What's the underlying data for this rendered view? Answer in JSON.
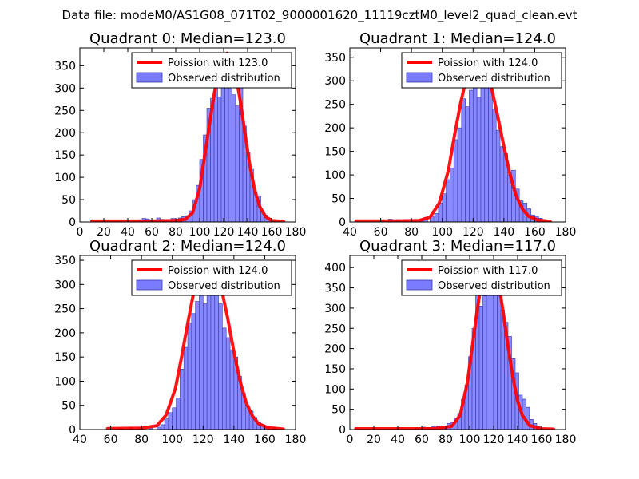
{
  "figure_title": "Data file: modeM0/AS1G08_071T02_9000001620_11119cztM0_level2_quad_clean.evt",
  "colors": {
    "bar_fill": "#7b7bff",
    "bar_edge": "#3a3aa8",
    "poisson_line": "#ff0000",
    "axes": "#000000"
  },
  "chart_data": [
    {
      "type": "bar",
      "title": "Quadrant 0: Median=123.0",
      "xlim": [
        0,
        180
      ],
      "ylim": [
        0,
        390
      ],
      "xticks": [
        0,
        20,
        40,
        60,
        80,
        100,
        120,
        140,
        160,
        180
      ],
      "yticks": [
        0,
        50,
        100,
        150,
        200,
        250,
        300,
        350
      ],
      "legend": {
        "location": "top-right",
        "line_label": "Poission with 123.0",
        "bar_label": "Observed distribution"
      },
      "poisson_mean": 123.0,
      "bin_width": 3.0,
      "bins": [
        [
          49,
          5
        ],
        [
          52,
          8
        ],
        [
          55,
          7
        ],
        [
          58,
          4
        ],
        [
          61,
          3
        ],
        [
          64,
          9
        ],
        [
          67,
          6
        ],
        [
          70,
          4
        ],
        [
          73,
          5
        ],
        [
          76,
          8
        ],
        [
          79,
          6
        ],
        [
          82,
          9
        ],
        [
          85,
          12
        ],
        [
          88,
          14
        ],
        [
          91,
          25
        ],
        [
          94,
          50
        ],
        [
          97,
          82
        ],
        [
          100,
          140
        ],
        [
          103,
          195
        ],
        [
          106,
          255
        ],
        [
          109,
          277
        ],
        [
          112,
          342
        ],
        [
          115,
          280
        ],
        [
          118,
          362
        ],
        [
          121,
          365
        ],
        [
          124,
          320
        ],
        [
          127,
          285
        ],
        [
          130,
          260
        ],
        [
          133,
          315
        ],
        [
          136,
          215
        ],
        [
          139,
          155
        ],
        [
          142,
          118
        ],
        [
          145,
          68
        ],
        [
          148,
          58
        ],
        [
          151,
          25
        ],
        [
          154,
          15
        ],
        [
          157,
          8
        ],
        [
          160,
          5
        ]
      ],
      "poisson_curve": [
        [
          10,
          2
        ],
        [
          40,
          2
        ],
        [
          60,
          2
        ],
        [
          80,
          3
        ],
        [
          88,
          6
        ],
        [
          94,
          20
        ],
        [
          100,
          75
        ],
        [
          104,
          145
        ],
        [
          108,
          215
        ],
        [
          112,
          285
        ],
        [
          116,
          340
        ],
        [
          120,
          372
        ],
        [
          123,
          378
        ],
        [
          126,
          368
        ],
        [
          130,
          330
        ],
        [
          134,
          270
        ],
        [
          138,
          195
        ],
        [
          142,
          125
        ],
        [
          146,
          70
        ],
        [
          150,
          35
        ],
        [
          155,
          12
        ],
        [
          160,
          3
        ],
        [
          170,
          1
        ]
      ]
    },
    {
      "type": "bar",
      "title": "Quadrant 1: Median=124.0",
      "xlim": [
        40,
        180
      ],
      "ylim": [
        0,
        370
      ],
      "xticks": [
        40,
        60,
        80,
        100,
        120,
        140,
        160,
        180
      ],
      "yticks": [
        0,
        50,
        100,
        150,
        200,
        250,
        300,
        350
      ],
      "legend": {
        "location": "top-right",
        "line_label": "Poission with 124.0",
        "bar_label": "Observed distribution"
      },
      "poisson_mean": 124.0,
      "bin_width": 2.5,
      "bins": [
        [
          60,
          4
        ],
        [
          65,
          6
        ],
        [
          70,
          5
        ],
        [
          75,
          3
        ],
        [
          80,
          4
        ],
        [
          85,
          5
        ],
        [
          88,
          9
        ],
        [
          92,
          12
        ],
        [
          95,
          18
        ],
        [
          97.5,
          40
        ],
        [
          100,
          60
        ],
        [
          102.5,
          90
        ],
        [
          105,
          115
        ],
        [
          107.5,
          175
        ],
        [
          110,
          200
        ],
        [
          112.5,
          262
        ],
        [
          115,
          245
        ],
        [
          117.5,
          280
        ],
        [
          120,
          300
        ],
        [
          122.5,
          265
        ],
        [
          125,
          320
        ],
        [
          127.5,
          340
        ],
        [
          130,
          300
        ],
        [
          132.5,
          240
        ],
        [
          135,
          195
        ],
        [
          137.5,
          160
        ],
        [
          140,
          145
        ],
        [
          142.5,
          100
        ],
        [
          145,
          110
        ],
        [
          147.5,
          70
        ],
        [
          150,
          45
        ],
        [
          152.5,
          40
        ],
        [
          155,
          28
        ],
        [
          157.5,
          15
        ],
        [
          160,
          12
        ],
        [
          162.5,
          8
        ],
        [
          165,
          5
        ]
      ],
      "poisson_curve": [
        [
          44,
          2
        ],
        [
          70,
          2
        ],
        [
          85,
          3
        ],
        [
          92,
          10
        ],
        [
          98,
          40
        ],
        [
          104,
          110
        ],
        [
          108,
          185
        ],
        [
          112,
          255
        ],
        [
          116,
          310
        ],
        [
          120,
          338
        ],
        [
          124,
          345
        ],
        [
          128,
          330
        ],
        [
          132,
          285
        ],
        [
          136,
          225
        ],
        [
          140,
          160
        ],
        [
          144,
          100
        ],
        [
          148,
          55
        ],
        [
          152,
          28
        ],
        [
          156,
          12
        ],
        [
          162,
          4
        ],
        [
          170,
          1
        ]
      ]
    },
    {
      "type": "bar",
      "title": "Quadrant 2: Median=124.0",
      "xlim": [
        40,
        180
      ],
      "ylim": [
        0,
        360
      ],
      "xticks": [
        40,
        60,
        80,
        100,
        120,
        140,
        160,
        180
      ],
      "yticks": [
        0,
        50,
        100,
        150,
        200,
        250,
        300,
        350
      ],
      "legend": {
        "location": "top-right",
        "line_label": "Poission with 124.0",
        "bar_label": "Observed distribution"
      },
      "poisson_mean": 124.0,
      "bin_width": 2.5,
      "bins": [
        [
          65,
          3
        ],
        [
          72,
          4
        ],
        [
          78,
          5
        ],
        [
          85,
          3
        ],
        [
          90,
          5
        ],
        [
          92.5,
          10
        ],
        [
          95,
          22
        ],
        [
          97.5,
          35
        ],
        [
          100,
          45
        ],
        [
          102.5,
          65
        ],
        [
          105,
          125
        ],
        [
          107.5,
          170
        ],
        [
          110,
          220
        ],
        [
          112.5,
          240
        ],
        [
          115,
          265
        ],
        [
          117.5,
          300
        ],
        [
          120,
          260
        ],
        [
          122.5,
          330
        ],
        [
          125,
          320
        ],
        [
          127.5,
          300
        ],
        [
          130,
          260
        ],
        [
          132.5,
          210
        ],
        [
          135,
          190
        ],
        [
          137.5,
          165
        ],
        [
          140,
          150
        ],
        [
          142.5,
          110
        ],
        [
          145,
          75
        ],
        [
          147.5,
          50
        ],
        [
          150,
          38
        ],
        [
          152.5,
          25
        ],
        [
          155,
          15
        ],
        [
          157.5,
          10
        ],
        [
          160,
          7
        ],
        [
          165,
          4
        ]
      ],
      "poisson_curve": [
        [
          58,
          2
        ],
        [
          80,
          3
        ],
        [
          90,
          8
        ],
        [
          96,
          30
        ],
        [
          102,
          85
        ],
        [
          106,
          150
        ],
        [
          110,
          220
        ],
        [
          114,
          285
        ],
        [
          118,
          325
        ],
        [
          122,
          343
        ],
        [
          125,
          345
        ],
        [
          128,
          330
        ],
        [
          132,
          290
        ],
        [
          136,
          230
        ],
        [
          140,
          160
        ],
        [
          144,
          100
        ],
        [
          148,
          55
        ],
        [
          152,
          28
        ],
        [
          156,
          12
        ],
        [
          162,
          4
        ],
        [
          172,
          1
        ]
      ]
    },
    {
      "type": "bar",
      "title": "Quadrant 3: Median=117.0",
      "xlim": [
        0,
        180
      ],
      "ylim": [
        0,
        430
      ],
      "xticks": [
        0,
        20,
        40,
        60,
        80,
        100,
        120,
        140,
        160,
        180
      ],
      "yticks": [
        0,
        50,
        100,
        150,
        200,
        250,
        300,
        350,
        400
      ],
      "legend": {
        "location": "top-right",
        "line_label": "Poission with 117.0",
        "bar_label": "Observed distribution"
      },
      "poisson_mean": 117.0,
      "bin_width": 3.0,
      "bins": [
        [
          55,
          4
        ],
        [
          60,
          6
        ],
        [
          64,
          5
        ],
        [
          68,
          7
        ],
        [
          72,
          8
        ],
        [
          75,
          6
        ],
        [
          78,
          9
        ],
        [
          81,
          15
        ],
        [
          84,
          18
        ],
        [
          87,
          28
        ],
        [
          90,
          40
        ],
        [
          93,
          75
        ],
        [
          96,
          110
        ],
        [
          99,
          180
        ],
        [
          102,
          250
        ],
        [
          105,
          345
        ],
        [
          108,
          305
        ],
        [
          111,
          330
        ],
        [
          114,
          395
        ],
        [
          117,
          385
        ],
        [
          120,
          405
        ],
        [
          123,
          355
        ],
        [
          126,
          295
        ],
        [
          129,
          265
        ],
        [
          132,
          230
        ],
        [
          135,
          175
        ],
        [
          138,
          140
        ],
        [
          141,
          85
        ],
        [
          144,
          75
        ],
        [
          147,
          55
        ],
        [
          150,
          25
        ],
        [
          153,
          15
        ],
        [
          156,
          8
        ]
      ],
      "poisson_curve": [
        [
          5,
          2
        ],
        [
          40,
          2
        ],
        [
          70,
          2
        ],
        [
          85,
          8
        ],
        [
          92,
          35
        ],
        [
          98,
          115
        ],
        [
          102,
          200
        ],
        [
          106,
          290
        ],
        [
          110,
          365
        ],
        [
          114,
          405
        ],
        [
          117,
          415
        ],
        [
          120,
          405
        ],
        [
          124,
          365
        ],
        [
          128,
          290
        ],
        [
          132,
          205
        ],
        [
          136,
          130
        ],
        [
          140,
          70
        ],
        [
          144,
          35
        ],
        [
          150,
          10
        ],
        [
          160,
          2
        ],
        [
          170,
          1
        ]
      ]
    }
  ]
}
